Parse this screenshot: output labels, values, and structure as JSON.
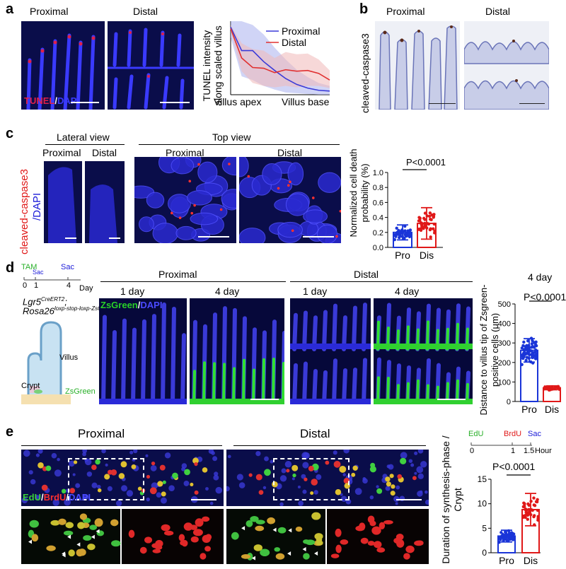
{
  "panels": {
    "a": "a",
    "b": "b",
    "c": "c",
    "d": "d",
    "e": "e"
  },
  "a": {
    "proximal": "Proximal",
    "distal": "Distal",
    "stain_tunel": "TUNEL",
    "stain_sep": "/",
    "stain_dapi": "DAPI",
    "colors": {
      "tunel": "#e0204a",
      "dapi": "#3a3aff"
    }
  },
  "b": {
    "proximal": "Proximal",
    "distal": "Distal",
    "ylabel": "cleaved-caspase3"
  },
  "c": {
    "lateral": "Lateral view",
    "top": "Top view",
    "lat_prox": "Proximal",
    "lat_dist": "Distal",
    "top_prox": "Proximal",
    "top_dist": "Distal",
    "ylabel_red": "cleaved-caspase3",
    "ylabel_blue": "/DAPI",
    "pvalue": "P<0.0001"
  },
  "d": {
    "timeline": {
      "tam": "TAM",
      "sac1": "Sac",
      "sac2": "Sac",
      "t0": "0",
      "t1": "1",
      "t4": "4",
      "unit": "Day"
    },
    "model_line1": "Lgr5",
    "model_sup1": "CreERT2",
    "model_line2": "Rosa26",
    "model_sup2": "loxp-stop-loxp-ZsGreen",
    "villus": "Villus",
    "crypt": "Crypt",
    "zsgreen": "ZsGreen",
    "proximal": "Proximal",
    "distal": "Distal",
    "day1a": "1 day",
    "day4a": "4 day",
    "day1b": "1 day",
    "day4b": "4 day",
    "stain_green": "ZsGreen",
    "stain_sep": "/",
    "stain_blue": "DAPI",
    "title": "4 day",
    "pvalue": "P<0.0001"
  },
  "e": {
    "proximal": "Proximal",
    "distal": "Distal",
    "stain_edu": "EdU",
    "stain_sep1": "/",
    "stain_brdu": "BrdU",
    "stain_sep2": "/",
    "stain_dapi": "DAPI",
    "timeline": {
      "edu": "EdU",
      "brdu": "BrdU",
      "sac": "Sac",
      "t0": "0",
      "t1": "1",
      "t15": "1.5",
      "unit": "Hour"
    },
    "pvalue": "P<0.0001"
  },
  "chart_data": [
    {
      "type": "line",
      "panel": "a",
      "ylabel": "TUNEL intensity along scaled villus",
      "x_tick_labels": [
        "Villus apex",
        "Villus base"
      ],
      "x": [
        0,
        1,
        2,
        3,
        4,
        5,
        6,
        7,
        8,
        9
      ],
      "series": [
        {
          "name": "Proximal",
          "color": "#3a3ad8",
          "band_color": "#aab0ee",
          "values": [
            0.92,
            0.6,
            0.6,
            0.45,
            0.33,
            0.22,
            0.14,
            0.09,
            0.06,
            0.05
          ],
          "lower": [
            0.78,
            0.25,
            0.2,
            0.12,
            0.07,
            0.03,
            0.02,
            0.01,
            0.0,
            0.0
          ],
          "upper": [
            1.0,
            1.0,
            0.95,
            0.82,
            0.64,
            0.48,
            0.34,
            0.24,
            0.16,
            0.12
          ]
        },
        {
          "name": "Distal",
          "color": "#e03030",
          "band_color": "#f0b8b8",
          "values": [
            0.9,
            0.5,
            0.37,
            0.36,
            0.3,
            0.34,
            0.32,
            0.33,
            0.29,
            0.2
          ],
          "lower": [
            0.86,
            0.32,
            0.16,
            0.12,
            0.1,
            0.12,
            0.1,
            0.12,
            0.12,
            0.09
          ],
          "upper": [
            0.95,
            0.7,
            0.62,
            0.6,
            0.5,
            0.58,
            0.55,
            0.56,
            0.48,
            0.33
          ]
        }
      ]
    },
    {
      "type": "bar",
      "panel": "c",
      "ylabel": "Normalized cell death probability (%)",
      "categories": [
        "Pro",
        "Dis"
      ],
      "values": [
        0.2,
        0.32
      ],
      "errors": [
        0.1,
        0.21
      ],
      "colors": [
        "#1a35d8",
        "#e01818"
      ],
      "ylim": [
        0,
        1.0
      ],
      "yticks": [
        "0.0",
        "0.2",
        "0.4",
        "0.6",
        "0.8",
        "1.0"
      ]
    },
    {
      "type": "bar",
      "panel": "d",
      "ylabel": "Distance to villus tip of Zsgreen-positive cells (μm)",
      "categories": [
        "Pro",
        "Dis"
      ],
      "values": [
        262,
        70
      ],
      "errors": [
        60,
        10
      ],
      "colors": [
        "#1a35d8",
        "#e01818"
      ],
      "ylim": [
        0,
        500
      ],
      "yticks": [
        "0",
        "100",
        "200",
        "300",
        "400",
        "500"
      ]
    },
    {
      "type": "bar",
      "panel": "e",
      "ylabel": "Duration of synthesis-phase / Crypt",
      "categories": [
        "Pro",
        "Dis"
      ],
      "values": [
        3.4,
        8.8
      ],
      "errors": [
        1.2,
        3.3
      ],
      "colors": [
        "#1a35d8",
        "#e01818"
      ],
      "ylim": [
        0,
        15
      ],
      "yticks": [
        "0",
        "5",
        "10",
        "15"
      ]
    }
  ]
}
